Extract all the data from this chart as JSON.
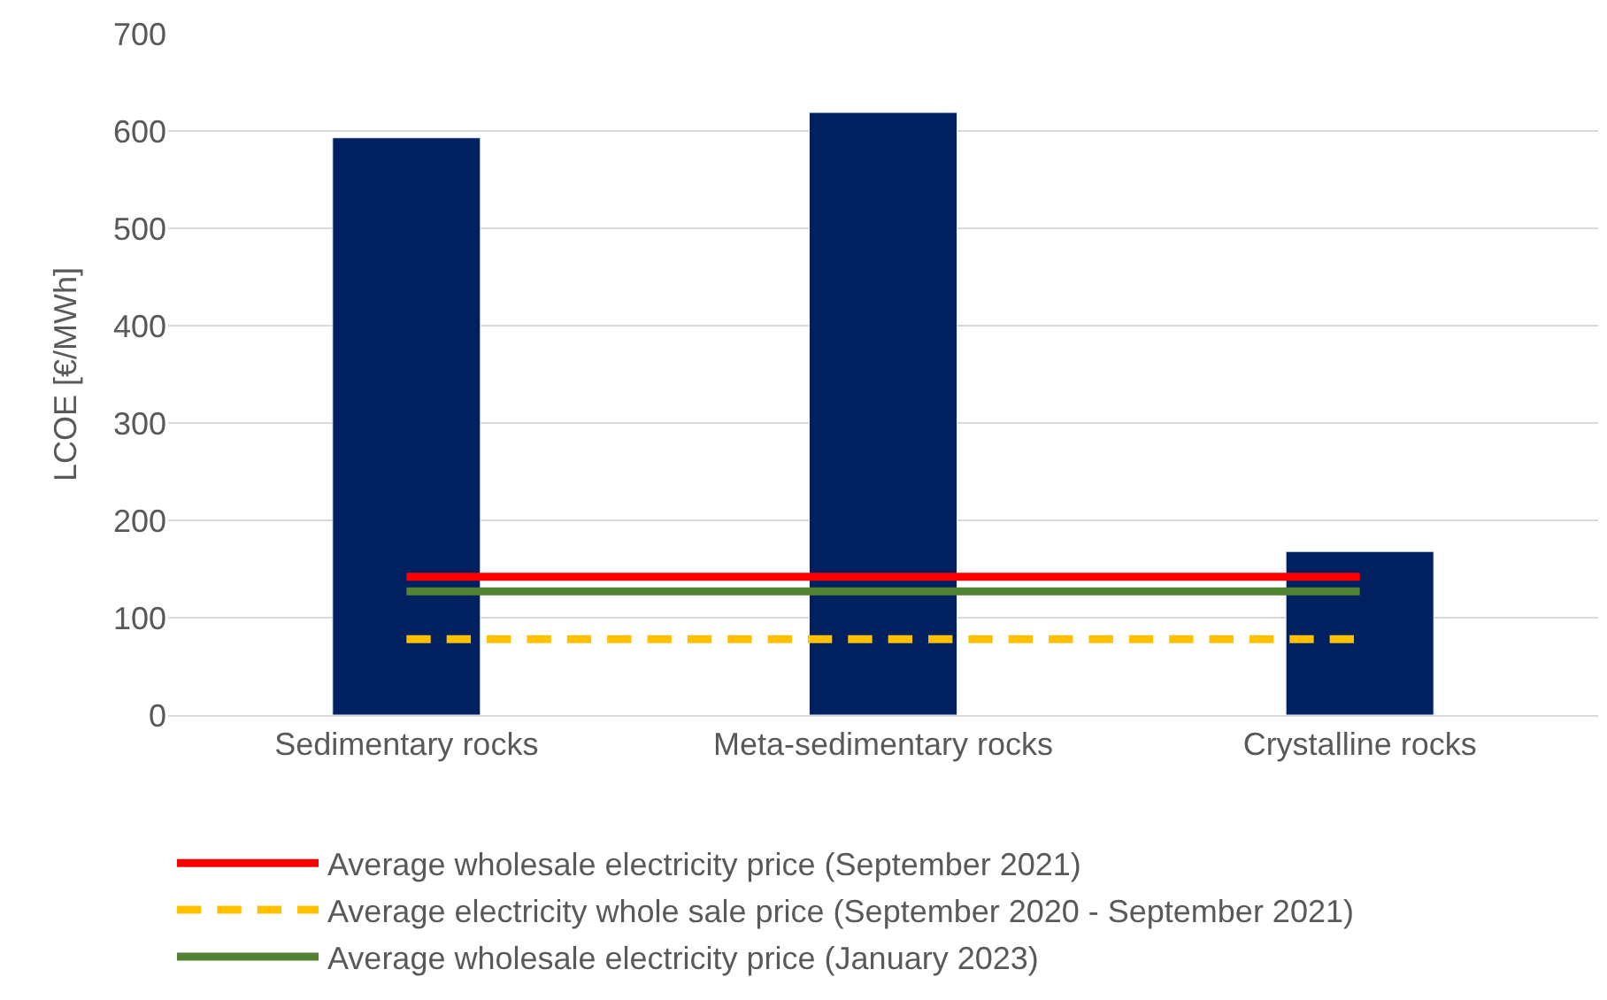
{
  "chart_data": {
    "type": "bar",
    "ylabel": "LCOE [€/MWh]",
    "categories": [
      "Sedimentary rocks",
      "Meta-sedimentary rocks",
      "Crystalline rocks"
    ],
    "series": [
      {
        "color": "#002060",
        "values": [
          593,
          619,
          168
        ]
      },
      {
        "type": "line",
        "name": "Average wholesale electricity price (September 2021)",
        "color": "#ff0000",
        "line_style": "solid",
        "values": [
          142,
          142,
          142
        ]
      },
      {
        "type": "line",
        "name": "Average electricity whole sale price (September 2020 - September 2021)",
        "color": "#ffc000",
        "line_style": "dashed",
        "values": [
          78,
          78,
          78
        ]
      },
      {
        "type": "line",
        "name": "Average wholesale electricity price (January 2023)",
        "color": "#548235",
        "line_style": "solid",
        "values": [
          127,
          127,
          127
        ]
      }
    ],
    "ylim": [
      0,
      700
    ],
    "yticks": [
      0,
      100,
      200,
      300,
      400,
      500,
      600,
      700
    ],
    "grid": "y",
    "legend": "bottom",
    "marker": "none"
  }
}
